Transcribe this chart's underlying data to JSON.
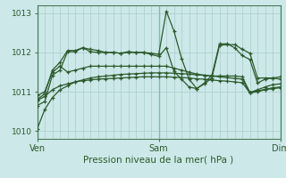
{
  "title": "Pression niveau de la mer( hPa )",
  "bg_color": "#cce8e8",
  "grid_color": "#aacccc",
  "line_color": "#2d5a2d",
  "dark_line_color": "#1a3a1a",
  "ylim": [
    1009.8,
    1013.2
  ],
  "yticks": [
    1010,
    1011,
    1012,
    1013
  ],
  "xlim": [
    0,
    96
  ],
  "x_ticks": [
    0,
    48,
    96
  ],
  "x_tick_labels": [
    "Ven",
    "Sam",
    "Dim"
  ],
  "lines": [
    {
      "x": [
        0,
        3,
        6,
        9,
        12,
        15,
        18,
        21,
        24,
        27,
        30,
        33,
        36,
        39,
        42,
        45,
        48,
        51,
        54,
        57,
        60,
        63,
        66,
        69,
        72,
        75,
        78,
        81,
        84,
        87,
        90,
        93,
        96
      ],
      "y": [
        1010.05,
        1010.55,
        1010.85,
        1011.05,
        1011.15,
        1011.25,
        1011.3,
        1011.35,
        1011.38,
        1011.4,
        1011.42,
        1011.44,
        1011.45,
        1011.46,
        1011.47,
        1011.48,
        1011.48,
        1011.48,
        1011.47,
        1011.46,
        1011.45,
        1011.43,
        1011.42,
        1011.4,
        1011.38,
        1011.36,
        1011.34,
        1011.32,
        1010.98,
        1011.02,
        1011.06,
        1011.1,
        1011.12
      ]
    },
    {
      "x": [
        0,
        3,
        6,
        9,
        12,
        15,
        18,
        21,
        24,
        27,
        30,
        33,
        36,
        39,
        42,
        45,
        48,
        51,
        54,
        57,
        60,
        63,
        66,
        69,
        72,
        75,
        78,
        81,
        84,
        87,
        90,
        93,
        96
      ],
      "y": [
        1010.78,
        1010.88,
        1011.05,
        1011.15,
        1011.2,
        1011.25,
        1011.28,
        1011.3,
        1011.32,
        1011.33,
        1011.34,
        1011.35,
        1011.36,
        1011.37,
        1011.38,
        1011.38,
        1011.38,
        1011.38,
        1011.37,
        1011.36,
        1011.35,
        1011.33,
        1011.32,
        1011.3,
        1011.28,
        1011.27,
        1011.25,
        1011.23,
        1010.97,
        1011.0,
        1011.05,
        1011.08,
        1011.1
      ]
    },
    {
      "x": [
        0,
        3,
        6,
        9,
        12,
        15,
        18,
        21,
        24,
        27,
        30,
        33,
        36,
        39,
        42,
        45,
        48,
        51,
        54,
        57,
        60,
        63,
        66,
        69,
        72,
        75,
        78,
        81,
        84,
        87,
        90,
        93,
        96
      ],
      "y": [
        1010.9,
        1011.0,
        1011.5,
        1011.65,
        1011.5,
        1011.55,
        1011.6,
        1011.65,
        1011.65,
        1011.65,
        1011.65,
        1011.65,
        1011.65,
        1011.65,
        1011.65,
        1011.65,
        1011.65,
        1011.65,
        1011.6,
        1011.55,
        1011.5,
        1011.45,
        1011.42,
        1011.4,
        1011.4,
        1011.4,
        1011.4,
        1011.38,
        1010.98,
        1011.05,
        1011.12,
        1011.18,
        1011.2
      ]
    },
    {
      "x": [
        0,
        3,
        6,
        9,
        12,
        15,
        18,
        21,
        24,
        27,
        30,
        33,
        36,
        39,
        42,
        45,
        48,
        51,
        54,
        57,
        60,
        63,
        66,
        69,
        72,
        75,
        78,
        81,
        84,
        87,
        90,
        93,
        96
      ],
      "y": [
        1010.8,
        1010.95,
        1011.55,
        1011.75,
        1012.05,
        1012.05,
        1012.12,
        1012.08,
        1012.05,
        1012.0,
        1012.0,
        1011.98,
        1012.0,
        1012.0,
        1012.0,
        1011.98,
        1011.95,
        1013.05,
        1012.55,
        1011.85,
        1011.32,
        1011.08,
        1011.2,
        1011.35,
        1012.18,
        1012.2,
        1012.2,
        1012.08,
        1011.98,
        1011.35,
        1011.35,
        1011.35,
        1011.32
      ]
    },
    {
      "x": [
        0,
        3,
        6,
        9,
        12,
        15,
        18,
        21,
        24,
        27,
        30,
        33,
        36,
        39,
        42,
        45,
        48,
        51,
        54,
        57,
        60,
        63,
        66,
        69,
        72,
        75,
        78,
        81,
        84,
        87,
        90,
        93,
        96
      ],
      "y": [
        1010.65,
        1010.75,
        1011.42,
        1011.55,
        1012.02,
        1012.02,
        1012.12,
        1012.02,
        1012.0,
        1012.0,
        1012.0,
        1011.98,
        1012.02,
        1012.0,
        1012.0,
        1011.95,
        1011.9,
        1012.12,
        1011.52,
        1011.32,
        1011.12,
        1011.08,
        1011.22,
        1011.42,
        1012.22,
        1012.22,
        1012.12,
        1011.92,
        1011.82,
        1011.22,
        1011.32,
        1011.35,
        1011.38
      ]
    }
  ]
}
